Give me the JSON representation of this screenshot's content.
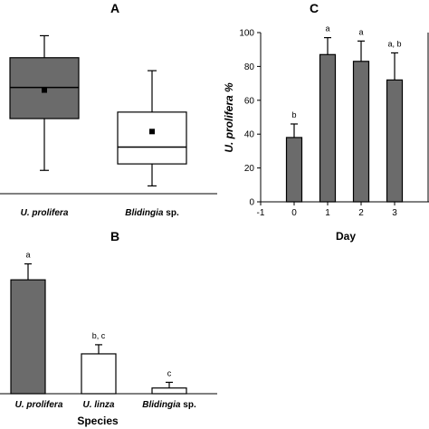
{
  "colors": {
    "dark_fill": "#6b6b6b",
    "light_fill": "#ffffff",
    "stroke": "#000000",
    "background": "#ffffff"
  },
  "chart_data": [
    {
      "panel": "A",
      "type": "box",
      "categories": [
        {
          "italic": "U. prolifera",
          "normal": ""
        },
        {
          "italic": "Blidingia",
          "normal": " sp."
        }
      ],
      "boxes": [
        {
          "min": 18,
          "q1": 58,
          "median": 82,
          "q3": 105,
          "max": 122,
          "mean": 80,
          "fill": "dark"
        },
        {
          "min": 6,
          "q1": 23,
          "median": 36,
          "q3": 63,
          "max": 95,
          "mean": 48,
          "fill": "light"
        }
      ],
      "ylim": [
        0,
        130
      ]
    },
    {
      "panel": "B",
      "type": "bar",
      "xlabel": "Species",
      "categories": [
        {
          "italic": "U. prolifera",
          "normal": ""
        },
        {
          "italic": "U. linza",
          "normal": ""
        },
        {
          "italic": "Blidingia",
          "normal": " sp."
        }
      ],
      "values": [
        100,
        35,
        5
      ],
      "errors": [
        14,
        8,
        5
      ],
      "letters": [
        "a",
        "b, c",
        "c"
      ],
      "fills": [
        "dark",
        "light",
        "light"
      ],
      "ylim": [
        0,
        120
      ]
    },
    {
      "panel": "C",
      "type": "bar",
      "xlabel": "Day",
      "ylabel": "U. prolifera %",
      "x": [
        0,
        1,
        2,
        3
      ],
      "values": [
        38,
        87,
        83,
        72
      ],
      "errors": [
        8,
        10,
        12,
        16
      ],
      "letters": [
        "b",
        "a",
        "a",
        "a, b"
      ],
      "xlim": [
        -1,
        4
      ],
      "xticks": [
        "-1",
        "0",
        "1",
        "2",
        "3"
      ],
      "ylim": [
        0,
        100
      ],
      "yticks": [
        "0",
        "20",
        "40",
        "60",
        "80",
        "100"
      ]
    }
  ]
}
